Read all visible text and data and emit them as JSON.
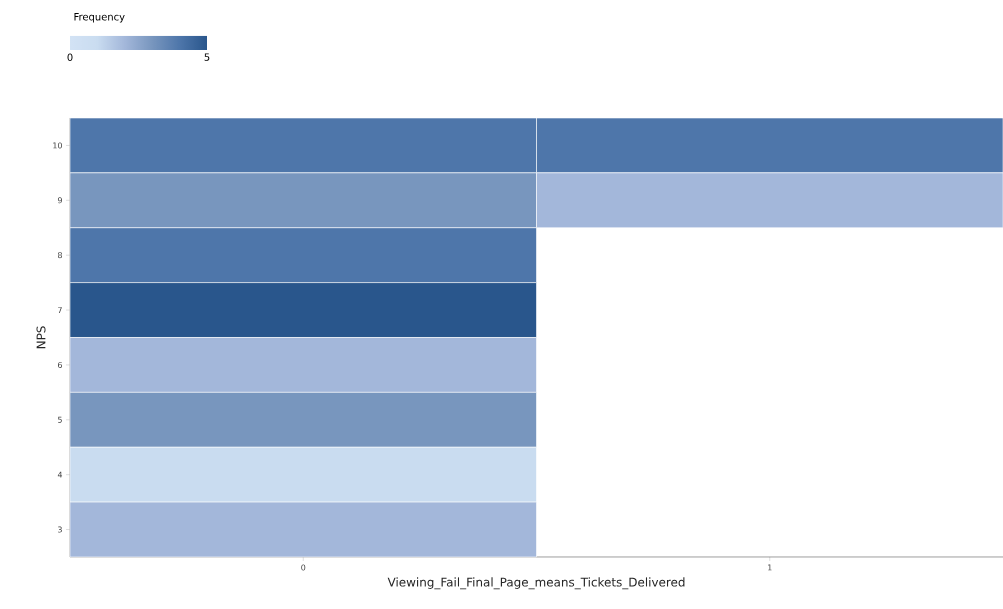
{
  "chart_data": {
    "type": "heatmap",
    "xlabel": "Viewing_Fail_Final_Page_means_Tickets_Delivered",
    "ylabel": "NPS",
    "clabel": "Frequency",
    "categories": [
      "0",
      "1"
    ],
    "y_categories": [
      "10",
      "9",
      "8",
      "7",
      "6",
      "5",
      "4",
      "3"
    ],
    "cells": [
      [
        4,
        4
      ],
      [
        3,
        2
      ],
      [
        4,
        null
      ],
      [
        5,
        null
      ],
      [
        2,
        null
      ],
      [
        3,
        null
      ],
      [
        1,
        null
      ],
      [
        2,
        null
      ]
    ],
    "clim": [
      0,
      5
    ],
    "cticks": [
      0,
      5
    ],
    "grid": false
  }
}
